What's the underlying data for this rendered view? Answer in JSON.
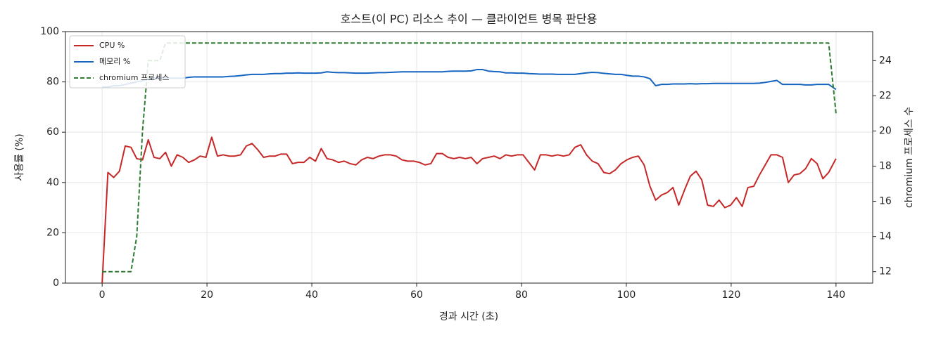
{
  "chart_data": {
    "type": "line",
    "title": "호스트(이 PC) 리소스 추이 — 클라이언트 병목 판단용",
    "xlabel": "경과 시간 (초)",
    "ylabel": "사용률 (%)",
    "y2label": "chromium 프로세스 수",
    "x": [
      0,
      1.1,
      2.2,
      3.3,
      4.4,
      5.5,
      6.6,
      7.7,
      8.8,
      9.9,
      11,
      12.1,
      13.2,
      14.3,
      15.4,
      16.5,
      17.6,
      18.7,
      19.8,
      20.9,
      22,
      23.1,
      24.2,
      25.3,
      26.4,
      27.5,
      28.6,
      29.7,
      30.8,
      31.9,
      33,
      34.1,
      35.2,
      36.3,
      37.4,
      38.5,
      39.6,
      40.7,
      41.8,
      42.9,
      44,
      45.1,
      46.2,
      47.3,
      48.4,
      49.5,
      50.6,
      51.7,
      52.8,
      53.9,
      55,
      56.1,
      57.2,
      58.3,
      59.4,
      60.5,
      61.6,
      62.7,
      63.8,
      64.9,
      66,
      67.1,
      68.2,
      69.3,
      70.4,
      71.5,
      72.6,
      73.7,
      74.8,
      75.9,
      77,
      78.1,
      79.2,
      80.3,
      81.4,
      82.5,
      83.6,
      84.7,
      85.8,
      86.9,
      88,
      89.1,
      90.2,
      91.3,
      92.4,
      93.5,
      94.6,
      95.7,
      96.8,
      97.9,
      99,
      100.1,
      101.2,
      102.3,
      103.4,
      104.5,
      105.6,
      106.7,
      107.8,
      108.9,
      110,
      111.1,
      112.2,
      113.3,
      114.4,
      115.5,
      116.6,
      117.7,
      118.8,
      119.9,
      121,
      122.1,
      123.2,
      124.3,
      125.4,
      126.5,
      127.6,
      128.7,
      129.8,
      130.9,
      132,
      133.1,
      134.2,
      135.3,
      136.4,
      137.5,
      138.6,
      140
    ],
    "series": [
      {
        "name": "CPU %",
        "color": "#c62828",
        "linestyle": "solid",
        "values": [
          0,
          44,
          42,
          44.5,
          54.5,
          54,
          49.5,
          49,
          57,
          50,
          49.5,
          52,
          46.5,
          51,
          50,
          48,
          49,
          50.5,
          50,
          58,
          50.5,
          51,
          50.5,
          50.5,
          51,
          54.5,
          55.5,
          53,
          50,
          50.5,
          50.5,
          51.3,
          51.3,
          47.5,
          48,
          48,
          50,
          48.5,
          53.5,
          49.5,
          49,
          48,
          48.5,
          47.5,
          47,
          49,
          50,
          49.5,
          50.5,
          51,
          51,
          50.5,
          49,
          48.5,
          48.5,
          48,
          47,
          47.5,
          51.5,
          51.5,
          50,
          49.5,
          50,
          49.5,
          50,
          47.5,
          49.5,
          50,
          50.5,
          49.5,
          51,
          50.5,
          51,
          51,
          48,
          45,
          51,
          51,
          50.5,
          51,
          50.5,
          51,
          54,
          55,
          51,
          48.5,
          47.5,
          44,
          43.5,
          45,
          47.5,
          49,
          50,
          50.5,
          47,
          38.5,
          33,
          35,
          36,
          38,
          31,
          37,
          42.5,
          44.5,
          41,
          31,
          30.5,
          33,
          30,
          31,
          34,
          30.5,
          38,
          38.5,
          43,
          47,
          51,
          51,
          50,
          40,
          43,
          43.5,
          45.5,
          49.5,
          47.5,
          41.5,
          44,
          49.5
        ]
      },
      {
        "name": "메모리 %",
        "color": "#1565c0",
        "linestyle": "solid",
        "values": [
          78,
          78,
          78.5,
          78.5,
          79,
          79.5,
          80,
          80.5,
          81,
          81.5,
          81.5,
          81.5,
          81.5,
          81.5,
          81.5,
          81.8,
          82,
          82,
          82,
          82,
          82,
          82,
          82.2,
          82.3,
          82.5,
          82.8,
          83,
          83,
          83,
          83.2,
          83.3,
          83.3,
          83.5,
          83.5,
          83.6,
          83.5,
          83.5,
          83.5,
          83.6,
          84,
          83.8,
          83.7,
          83.7,
          83.6,
          83.5,
          83.5,
          83.5,
          83.6,
          83.7,
          83.7,
          83.8,
          83.9,
          84,
          84,
          84,
          84,
          84,
          84,
          84,
          84,
          84.2,
          84.3,
          84.3,
          84.3,
          84.4,
          84.9,
          84.9,
          84.3,
          84.1,
          84,
          83.6,
          83.6,
          83.5,
          83.5,
          83.3,
          83.2,
          83.1,
          83.1,
          83.1,
          83,
          83,
          83,
          83,
          83.3,
          83.6,
          83.8,
          83.7,
          83.4,
          83.2,
          83,
          83,
          82.6,
          82.3,
          82.3,
          82,
          81.3,
          78.5,
          79,
          79,
          79.2,
          79.2,
          79.2,
          79.3,
          79.2,
          79.3,
          79.3,
          79.4,
          79.4,
          79.4,
          79.4,
          79.4,
          79.4,
          79.4,
          79.4,
          79.5,
          79.8,
          80.2,
          80.6,
          79,
          79,
          79,
          79,
          78.8,
          78.8,
          79,
          79,
          79,
          77
        ]
      },
      {
        "name": "chromium 프로세스",
        "color": "#2e7d32",
        "linestyle": "dashed",
        "axis": "y2",
        "values": [
          12,
          12,
          12,
          12,
          12,
          12,
          14,
          20,
          24,
          24,
          24,
          25,
          25,
          25,
          25,
          25,
          25,
          25,
          25,
          25,
          25,
          25,
          25,
          25,
          25,
          25,
          25,
          25,
          25,
          25,
          25,
          25,
          25,
          25,
          25,
          25,
          25,
          25,
          25,
          25,
          25,
          25,
          25,
          25,
          25,
          25,
          25,
          25,
          25,
          25,
          25,
          25,
          25,
          25,
          25,
          25,
          25,
          25,
          25,
          25,
          25,
          25,
          25,
          25,
          25,
          25,
          25,
          25,
          25,
          25,
          25,
          25,
          25,
          25,
          25,
          25,
          25,
          25,
          25,
          25,
          25,
          25,
          25,
          25,
          25,
          25,
          25,
          25,
          25,
          25,
          25,
          25,
          25,
          25,
          25,
          25,
          25,
          25,
          25,
          25,
          25,
          25,
          25,
          25,
          25,
          25,
          25,
          25,
          25,
          25,
          25,
          25,
          25,
          25,
          25,
          25,
          25,
          25,
          25,
          25,
          25,
          25,
          25,
          25,
          25,
          25,
          25,
          21
        ]
      }
    ],
    "xlim": [
      -7,
      147
    ],
    "xticks": [
      0,
      20,
      40,
      60,
      80,
      100,
      120,
      140
    ],
    "ylim": [
      0,
      100
    ],
    "yticks": [
      0,
      20,
      40,
      60,
      80,
      100
    ],
    "y2lim": [
      11.35,
      25.65
    ],
    "y2ticks": [
      12,
      14,
      16,
      18,
      20,
      22,
      24
    ],
    "grid": true,
    "legend": "upper-left"
  }
}
